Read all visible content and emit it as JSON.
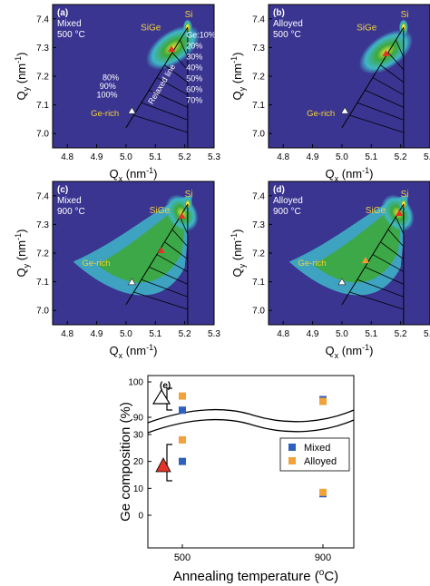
{
  "colors": {
    "map_bg": "#3a3591",
    "map_mid": "#3fb6c9",
    "map_high": "#3da83a",
    "map_peak": "#e8e23a",
    "relaxed_line": "#000000",
    "open_marker": "#ffffff",
    "red_marker": "#e03428",
    "orange_marker": "#f29a2e",
    "label_yellow": "#f3d23a",
    "label_white": "#ffffff",
    "mixed": "#2f5fbf",
    "alloyed": "#f2a23a"
  },
  "maps": {
    "x_axis_label": "Q",
    "x_axis_sub": "x",
    "x_axis_unit": "(nm",
    "x_axis_sup": "-1",
    "x_axis_close": ")",
    "y_axis_label": "Q",
    "y_axis_sub": "y",
    "y_axis_unit": "(nm",
    "y_axis_sup": "-1",
    "y_axis_close": ")",
    "x_ticks": [
      "4.8",
      "4.9",
      "5.0",
      "5.1",
      "5.2",
      "5.3"
    ],
    "y_ticks": [
      "7.0",
      "7.1",
      "7.2",
      "7.3",
      "7.4"
    ],
    "label_si": "Si",
    "label_sige": "SiGe",
    "label_gerich": "Ge-rich",
    "relaxed_line": "Relaxed line",
    "pct_left": [
      "80%",
      "90%",
      "100%"
    ],
    "pct_right": [
      "Ge:10%",
      "20%",
      "30%",
      "40%",
      "50%",
      "60%",
      "70%"
    ],
    "panels": [
      {
        "tag": "(a)",
        "name": "Mixed",
        "temp": "500 °C",
        "sige_peak": [
          5.16,
          7.3
        ],
        "red": [
          5.155,
          7.295
        ],
        "extra": null
      },
      {
        "tag": "(b)",
        "name": "Alloyed",
        "temp": "500 °C",
        "sige_peak": [
          5.15,
          7.285
        ],
        "red": [
          5.15,
          7.28
        ],
        "extra": null
      },
      {
        "tag": "(c)",
        "name": "Mixed",
        "temp": "900 °C",
        "sige_peak": [
          5.19,
          7.34
        ],
        "red": [
          5.19,
          7.33
        ],
        "extra": [
          5.12,
          7.21
        ]
      },
      {
        "tag": "(d)",
        "name": "Alloyed",
        "temp": "900 °C",
        "sige_peak": [
          5.19,
          7.34
        ],
        "red": [
          5.195,
          7.34
        ],
        "extra": [
          5.08,
          7.175
        ]
      }
    ]
  },
  "chart_data": [
    {
      "type": "heatmap",
      "panel": "(a)",
      "title": "Mixed 500 °C",
      "xlim": [
        4.75,
        5.3
      ],
      "ylim": [
        6.95,
        7.45
      ],
      "si_peak": [
        5.21,
        7.37
      ],
      "sige_peak": [
        5.16,
        7.3
      ],
      "ge_rich": [
        5.02,
        7.08
      ],
      "markers": [
        {
          "kind": "open-triangle",
          "x": 5.02,
          "y": 7.08
        },
        {
          "kind": "red-triangle",
          "x": 5.155,
          "y": 7.295
        }
      ]
    },
    {
      "type": "heatmap",
      "panel": "(b)",
      "title": "Alloyed 500 °C",
      "xlim": [
        4.75,
        5.3
      ],
      "ylim": [
        6.95,
        7.45
      ],
      "si_peak": [
        5.21,
        7.37
      ],
      "sige_peak": [
        5.15,
        7.285
      ],
      "ge_rich": [
        5.01,
        7.08
      ],
      "markers": [
        {
          "kind": "open-triangle",
          "x": 5.01,
          "y": 7.08
        },
        {
          "kind": "red-triangle",
          "x": 5.15,
          "y": 7.28
        }
      ]
    },
    {
      "type": "heatmap",
      "panel": "(c)",
      "title": "Mixed 900 °C",
      "xlim": [
        4.75,
        5.3
      ],
      "ylim": [
        6.95,
        7.45
      ],
      "si_peak": [
        5.21,
        7.37
      ],
      "sige_peak": [
        5.19,
        7.34
      ],
      "ge_rich": [
        5.02,
        7.1
      ],
      "markers": [
        {
          "kind": "open-triangle",
          "x": 5.02,
          "y": 7.1
        },
        {
          "kind": "red-triangle",
          "x": 5.19,
          "y": 7.33
        },
        {
          "kind": "red-triangle",
          "x": 5.12,
          "y": 7.21
        }
      ]
    },
    {
      "type": "heatmap",
      "panel": "(d)",
      "title": "Alloyed 900 °C",
      "xlim": [
        4.75,
        5.3
      ],
      "ylim": [
        6.95,
        7.45
      ],
      "si_peak": [
        5.21,
        7.37
      ],
      "sige_peak": [
        5.19,
        7.34
      ],
      "ge_rich": [
        5.0,
        7.1
      ],
      "markers": [
        {
          "kind": "open-triangle",
          "x": 5.0,
          "y": 7.1
        },
        {
          "kind": "red-triangle",
          "x": 5.195,
          "y": 7.34
        },
        {
          "kind": "orange-triangle",
          "x": 5.08,
          "y": 7.175
        }
      ]
    },
    {
      "type": "scatter",
      "panel": "(e)",
      "xlabel": "Annealing temperature (°C)",
      "ylabel": "Ge composition (%)",
      "categories": [
        "500",
        "900"
      ],
      "y_ticks_upper": [
        90,
        100
      ],
      "y_ticks_lower": [
        0,
        10,
        20,
        30
      ],
      "axis_break": [
        30,
        88
      ],
      "series": [
        {
          "name": "Mixed",
          "points": [
            {
              "x": "500",
              "y": 92
            },
            {
              "x": "500",
              "y": 20
            },
            {
              "x": "900",
              "y": 95
            },
            {
              "x": "900",
              "y": 8
            }
          ]
        },
        {
          "name": "Alloyed",
          "points": [
            {
              "x": "500",
              "y": 96
            },
            {
              "x": "500",
              "y": 28
            },
            {
              "x": "900",
              "y": 94.5
            },
            {
              "x": "900",
              "y": 8.5
            }
          ]
        }
      ],
      "group_markers": [
        {
          "kind": "open-triangle",
          "y": 94
        },
        {
          "kind": "red-triangle",
          "y": 23
        }
      ],
      "legend": [
        "Mixed",
        "Alloyed"
      ],
      "legend_position": "right-middle"
    }
  ],
  "panel_e": {
    "tag": "(e)",
    "ylabel": "Ge composition (%)",
    "xlabel_a": "Annealing temperature (",
    "xlabel_sup": "o",
    "xlabel_b": "C)",
    "x_ticks": [
      "500",
      "900"
    ],
    "y_ticks_upper": [
      "90",
      "100"
    ],
    "y_ticks_lower": [
      "0",
      "10",
      "20",
      "30"
    ],
    "legend_mixed": "Mixed",
    "legend_alloyed": "Alloyed"
  }
}
